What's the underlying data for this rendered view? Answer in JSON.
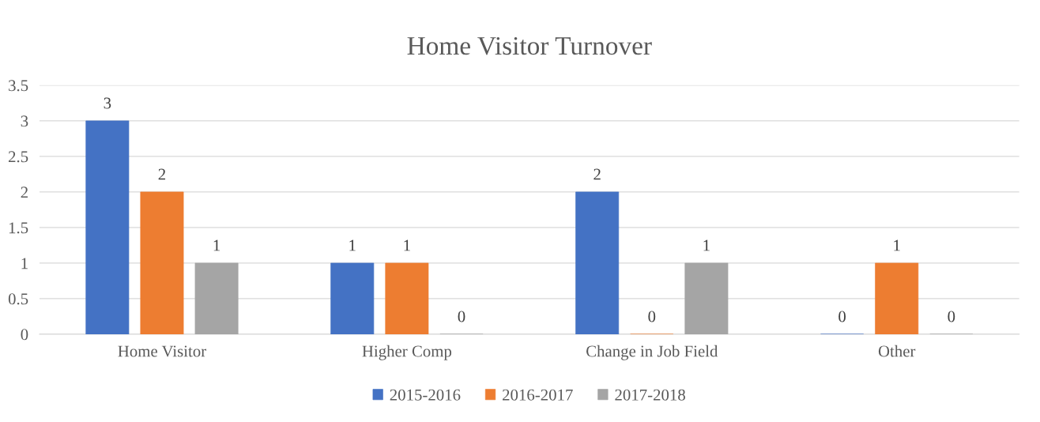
{
  "chart_data": {
    "type": "bar",
    "title": "Home Visitor Turnover",
    "categories": [
      "Home Visitor",
      "Higher Comp",
      "Change in Job Field",
      "Other"
    ],
    "series": [
      {
        "name": "2015-2016",
        "color": "#4472c4",
        "values": [
          3,
          1,
          2,
          0
        ]
      },
      {
        "name": "2016-2017",
        "color": "#ed7d31",
        "values": [
          2,
          1,
          0,
          1
        ]
      },
      {
        "name": "2017-2018",
        "color": "#a5a5a5",
        "values": [
          1,
          0,
          1,
          0
        ]
      }
    ],
    "ylim": [
      0,
      3.5
    ],
    "yticks": [
      0,
      0.5,
      1,
      1.5,
      2,
      2.5,
      3,
      3.5
    ],
    "grid": "y",
    "legend": "bottom",
    "data_labels": true
  }
}
